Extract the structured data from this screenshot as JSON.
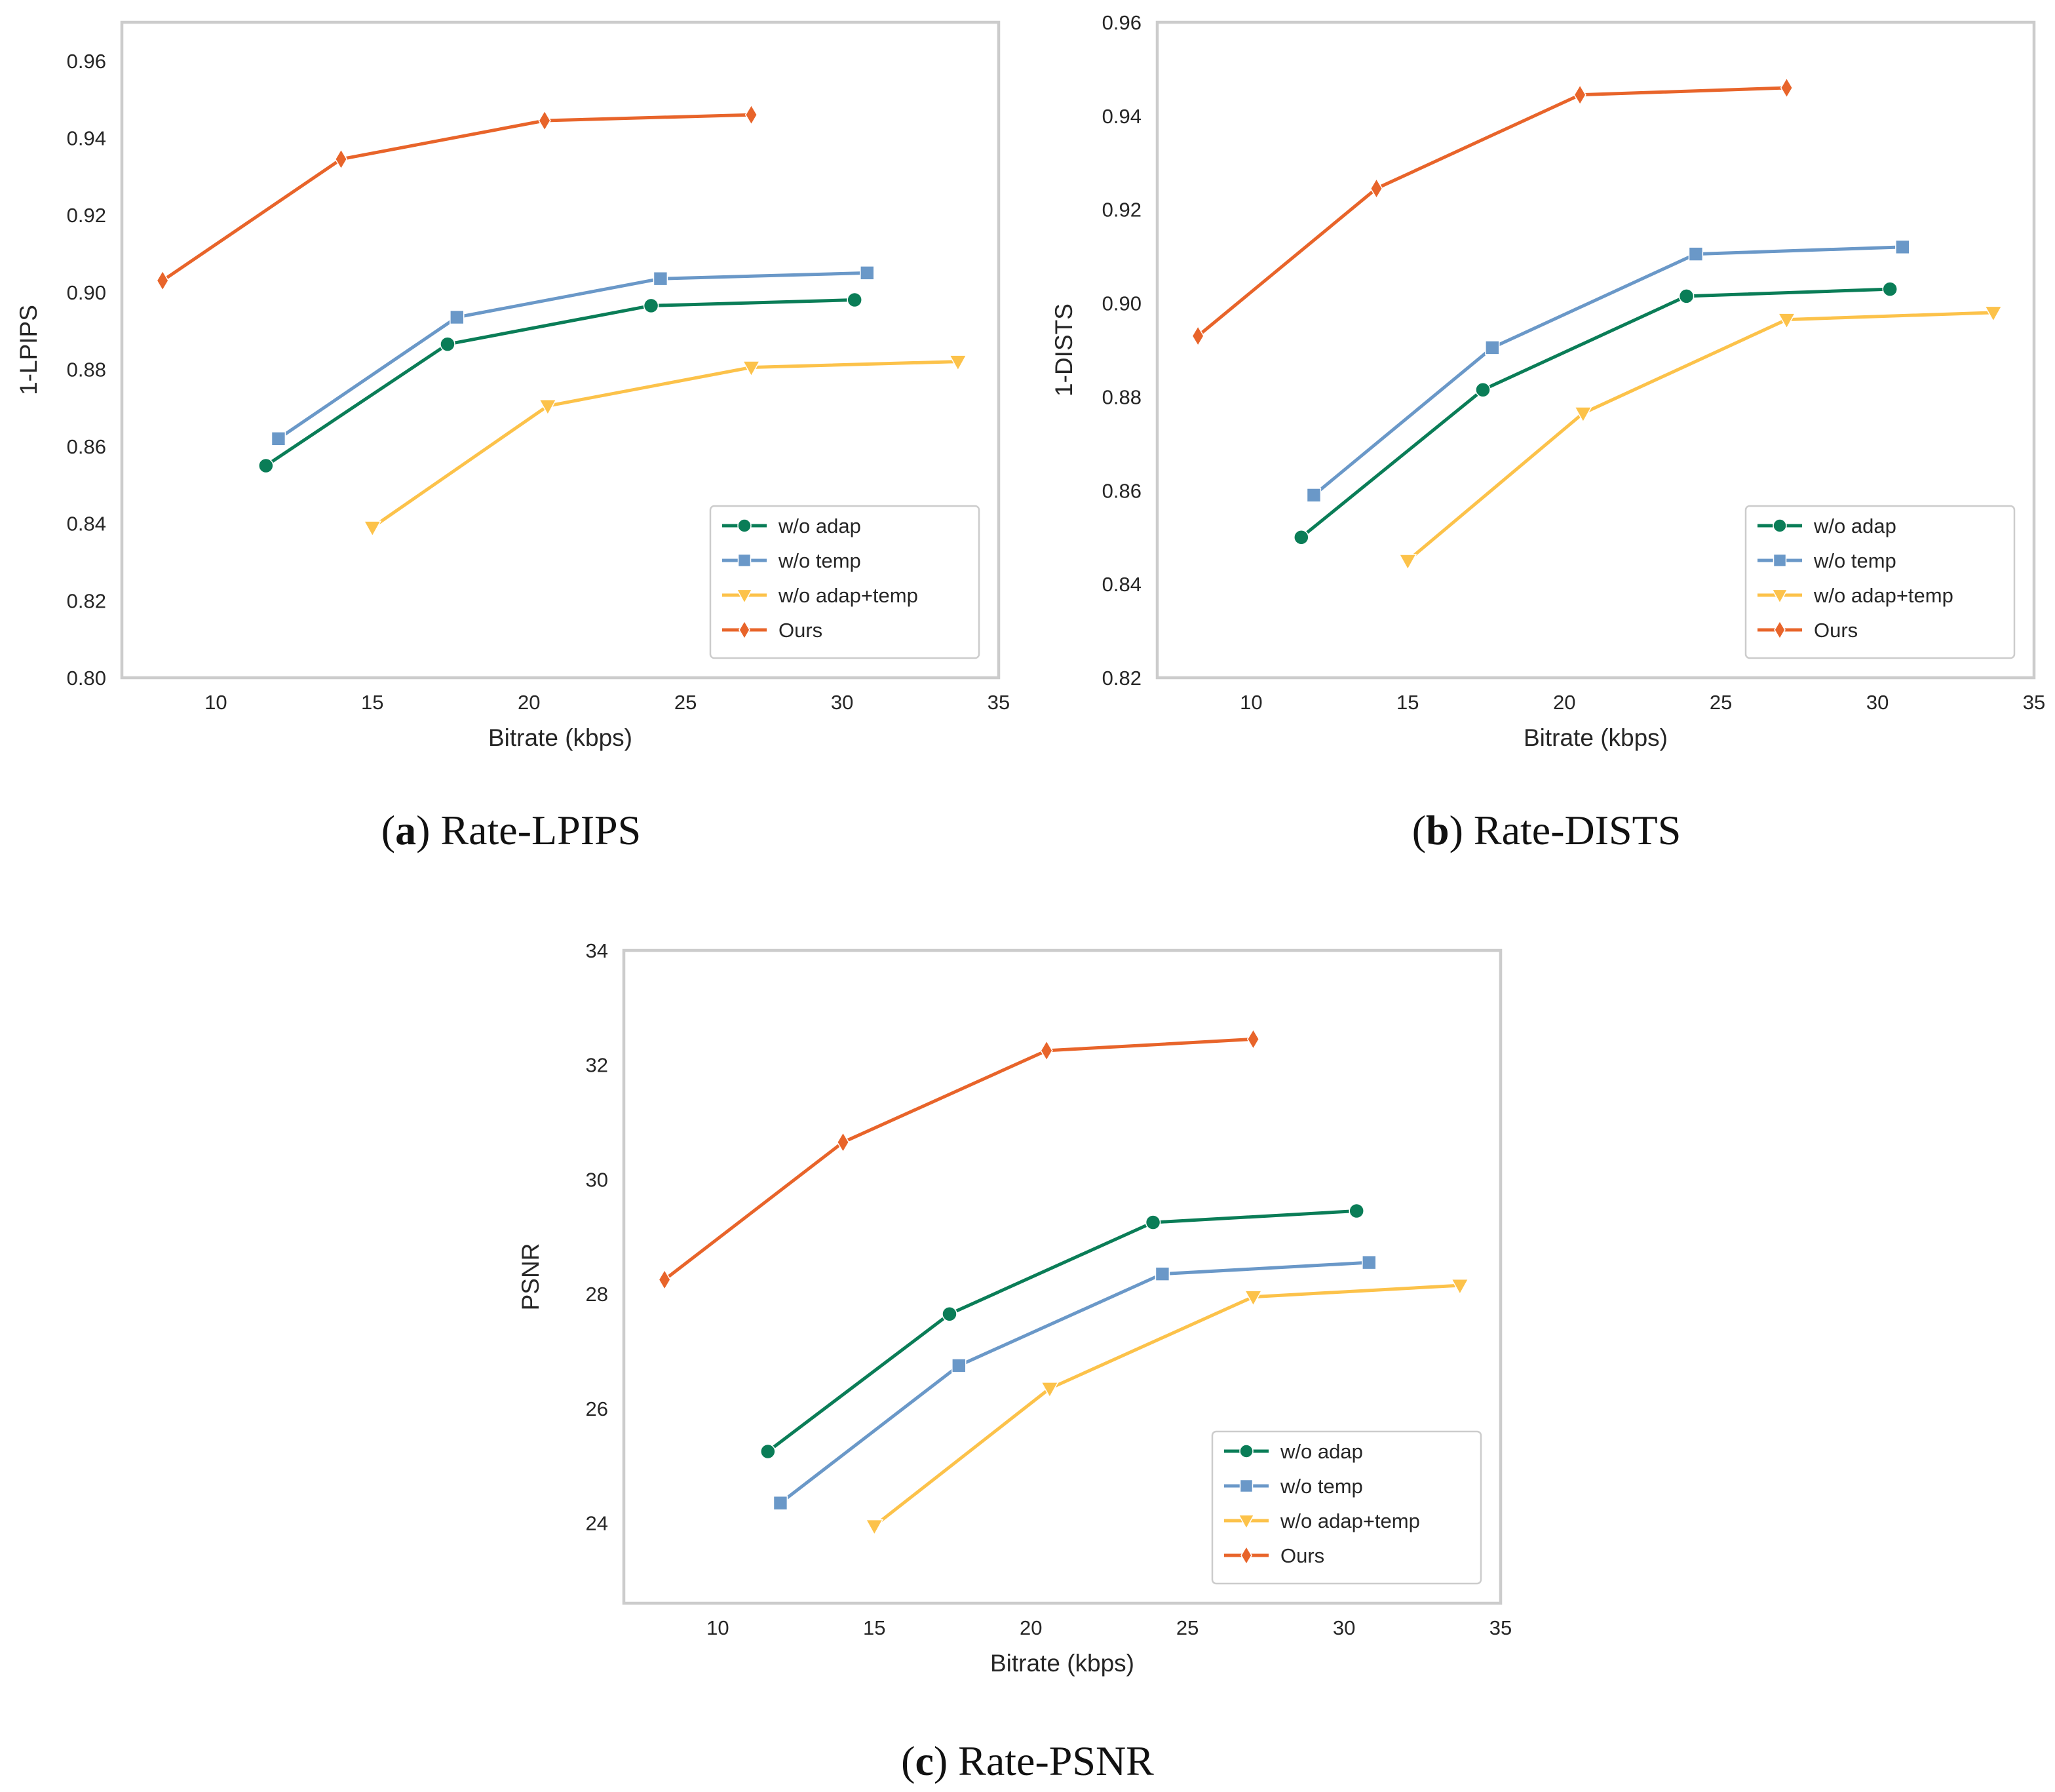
{
  "colors": {
    "w/o adap": "#0a7d57",
    "w/o temp": "#6a98c8",
    "w/o adap+temp": "#fcc24a",
    "Ours": "#e8642a"
  },
  "chart_data": [
    {
      "type": "line",
      "caption_letter": "a",
      "caption_text": "Rate-LPIPS",
      "caption_open": "(",
      "caption_close": ")",
      "xlabel": "Bitrate (kbps)",
      "ylabel": "1-LPIPS",
      "xlim": [
        7,
        35
      ],
      "ylim": [
        0.8,
        0.97
      ],
      "xticks": [
        10,
        15,
        20,
        25,
        30,
        35
      ],
      "yticks": [
        0.8,
        0.82,
        0.84,
        0.86,
        0.88,
        0.9,
        0.92,
        0.94,
        0.96
      ],
      "ytick_decimals": 2,
      "grid": true,
      "legend_position": "lower-right",
      "series": [
        {
          "name": "w/o adap",
          "marker": "circle",
          "x": [
            11.6,
            17.4,
            23.9,
            30.4
          ],
          "y": [
            0.855,
            0.8865,
            0.8965,
            0.898
          ]
        },
        {
          "name": "w/o temp",
          "marker": "square",
          "x": [
            12.0,
            17.7,
            24.2,
            30.8
          ],
          "y": [
            0.862,
            0.8935,
            0.9035,
            0.905
          ]
        },
        {
          "name": "w/o adap+temp",
          "marker": "triangle-down",
          "x": [
            15.0,
            20.6,
            27.1,
            33.7
          ],
          "y": [
            0.839,
            0.8705,
            0.8805,
            0.882
          ]
        },
        {
          "name": "Ours",
          "marker": "diamond",
          "x": [
            8.3,
            14.0,
            20.5,
            27.1
          ],
          "y": [
            0.903,
            0.9345,
            0.9445,
            0.946
          ]
        }
      ]
    },
    {
      "type": "line",
      "caption_letter": "b",
      "caption_text": "Rate-DISTS",
      "caption_open": "(",
      "caption_close": ")",
      "xlabel": "Bitrate (kbps)",
      "ylabel": "1-DISTS",
      "xlim": [
        7,
        35
      ],
      "ylim": [
        0.82,
        0.96
      ],
      "xticks": [
        10,
        15,
        20,
        25,
        30,
        35
      ],
      "yticks": [
        0.82,
        0.84,
        0.86,
        0.88,
        0.9,
        0.92,
        0.94,
        0.96
      ],
      "ytick_decimals": 2,
      "grid": true,
      "legend_position": "lower-right",
      "series": [
        {
          "name": "w/o adap",
          "marker": "circle",
          "x": [
            11.6,
            17.4,
            23.9,
            30.4
          ],
          "y": [
            0.85,
            0.8815,
            0.9015,
            0.903
          ]
        },
        {
          "name": "w/o temp",
          "marker": "square",
          "x": [
            12.0,
            17.7,
            24.2,
            30.8
          ],
          "y": [
            0.859,
            0.8905,
            0.9105,
            0.912
          ]
        },
        {
          "name": "w/o adap+temp",
          "marker": "triangle-down",
          "x": [
            15.0,
            20.6,
            27.1,
            33.7
          ],
          "y": [
            0.845,
            0.8765,
            0.8965,
            0.898
          ]
        },
        {
          "name": "Ours",
          "marker": "diamond",
          "x": [
            8.3,
            14.0,
            20.5,
            27.1
          ],
          "y": [
            0.893,
            0.9245,
            0.9445,
            0.946
          ]
        }
      ]
    },
    {
      "type": "line",
      "caption_letter": "c",
      "caption_text": "Rate-PSNR",
      "caption_open": "(",
      "caption_close": ")",
      "xlabel": "Bitrate (kbps)",
      "ylabel": "PSNR",
      "xlim": [
        7,
        35
      ],
      "ylim": [
        22.6,
        34.0
      ],
      "xticks": [
        10,
        15,
        20,
        25,
        30,
        35
      ],
      "yticks": [
        24,
        26,
        28,
        30,
        32,
        34
      ],
      "ytick_decimals": 0,
      "grid": true,
      "legend_position": "lower-right",
      "series": [
        {
          "name": "w/o adap",
          "marker": "circle",
          "x": [
            11.6,
            17.4,
            23.9,
            30.4
          ],
          "y": [
            25.25,
            27.65,
            29.25,
            29.45
          ]
        },
        {
          "name": "w/o temp",
          "marker": "square",
          "x": [
            12.0,
            17.7,
            24.2,
            30.8
          ],
          "y": [
            24.35,
            26.75,
            28.35,
            28.55
          ]
        },
        {
          "name": "w/o adap+temp",
          "marker": "triangle-down",
          "x": [
            15.0,
            20.6,
            27.1,
            33.7
          ],
          "y": [
            23.95,
            26.35,
            27.95,
            28.15
          ]
        },
        {
          "name": "Ours",
          "marker": "diamond",
          "x": [
            8.3,
            14.0,
            20.5,
            27.1
          ],
          "y": [
            28.25,
            30.65,
            32.25,
            32.45
          ]
        }
      ]
    }
  ]
}
